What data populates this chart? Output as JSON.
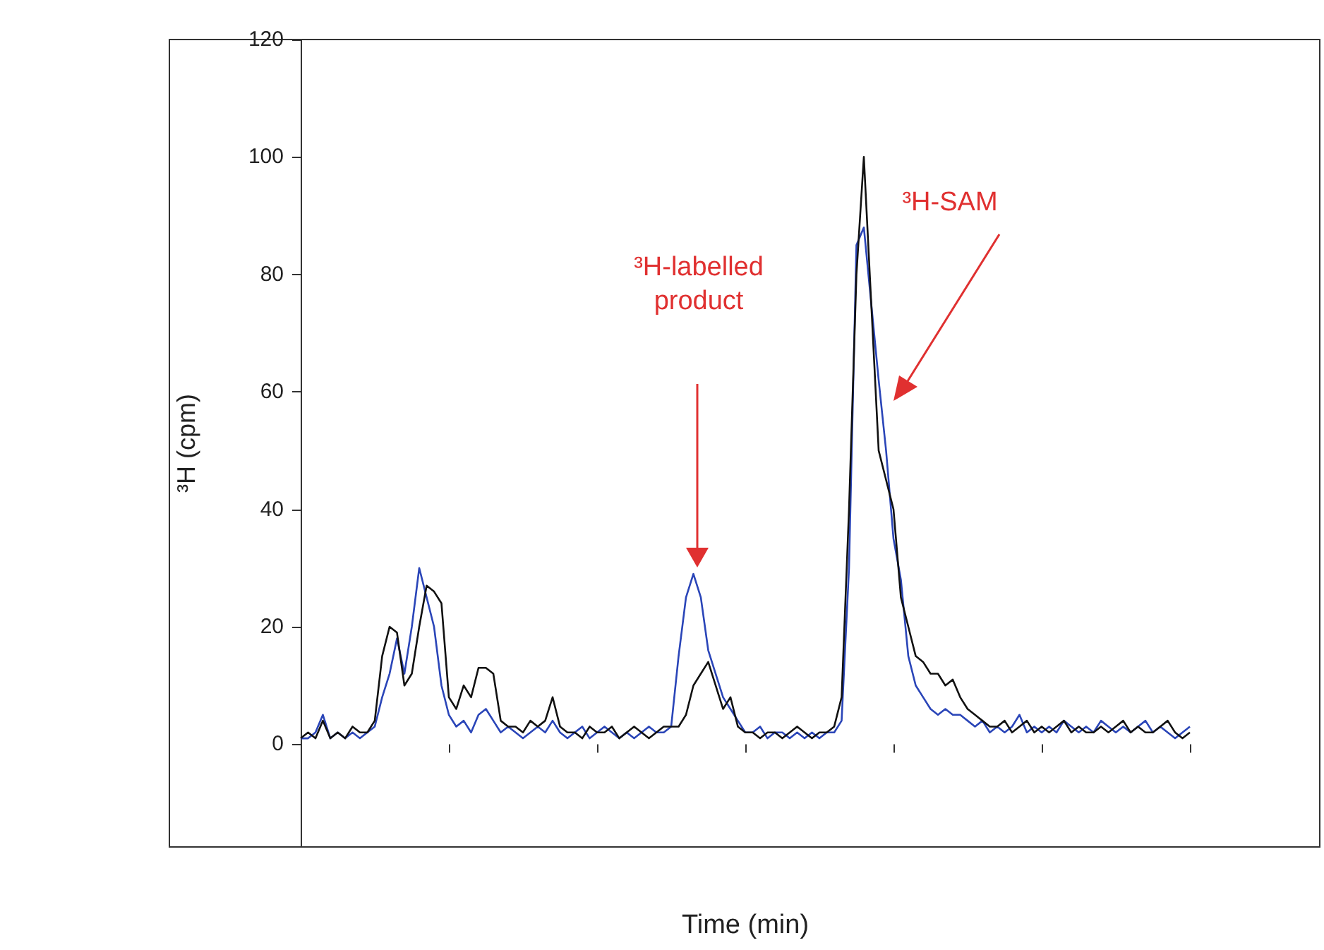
{
  "chart_data": {
    "type": "line",
    "xlabel": "Time (min)",
    "ylabel": "³H (cpm)",
    "categories": [
      null,
      null,
      null,
      null,
      null,
      null,
      null,
      null,
      null,
      null,
      null,
      null,
      null,
      null,
      null,
      null,
      null,
      null,
      null,
      null,
      null,
      null,
      null,
      null,
      null,
      null,
      null,
      null,
      null,
      null,
      null,
      null,
      null,
      null,
      null,
      null,
      null,
      null,
      null,
      null,
      null,
      null,
      null,
      null,
      null,
      null,
      null,
      null,
      null,
      null,
      null,
      null,
      null,
      null,
      null,
      null,
      null,
      null,
      null,
      null,
      null,
      null,
      null,
      null,
      null,
      null,
      null,
      null,
      null,
      null,
      null,
      null,
      null,
      null,
      null,
      null,
      null,
      null,
      null,
      null,
      null,
      null,
      null,
      null,
      null,
      null,
      null,
      null,
      null,
      null,
      null,
      null,
      null,
      null,
      null,
      null,
      null,
      null,
      null,
      null,
      null,
      null,
      null,
      null,
      null,
      null,
      null,
      null,
      null,
      null,
      null,
      null,
      null,
      null,
      null,
      null,
      null,
      null,
      null,
      null,
      null
    ],
    "series": [
      {
        "color": "#111111",
        "values": [
          1,
          2,
          1,
          4,
          1,
          2,
          1,
          3,
          2,
          2,
          4,
          15,
          20,
          19,
          10,
          12,
          20,
          27,
          26,
          24,
          8,
          6,
          10,
          8,
          13,
          13,
          12,
          4,
          3,
          3,
          2,
          4,
          3,
          4,
          8,
          3,
          2,
          2,
          1,
          3,
          2,
          2,
          3,
          1,
          2,
          3,
          2,
          1,
          2,
          3,
          3,
          3,
          5,
          10,
          12,
          14,
          10,
          6,
          8,
          3,
          2,
          2,
          1,
          2,
          2,
          1,
          2,
          3,
          2,
          1,
          2,
          2,
          3,
          8,
          40,
          80,
          100,
          75,
          50,
          45,
          40,
          25,
          20,
          15,
          14,
          12,
          12,
          10,
          11,
          8,
          6,
          5,
          4,
          3,
          3,
          4,
          2,
          3,
          4,
          2,
          3,
          2,
          3,
          4,
          2,
          3,
          2,
          2,
          3,
          2,
          3,
          4,
          2,
          3,
          2,
          2,
          3,
          4,
          2,
          1,
          2
        ]
      },
      {
        "color": "#2a45b8",
        "values": [
          1,
          1,
          2,
          5,
          1,
          2,
          1,
          2,
          1,
          2,
          3,
          8,
          12,
          18,
          12,
          20,
          30,
          25,
          20,
          10,
          5,
          3,
          4,
          2,
          5,
          6,
          4,
          2,
          3,
          2,
          1,
          2,
          3,
          2,
          4,
          2,
          1,
          2,
          3,
          1,
          2,
          3,
          2,
          1,
          2,
          1,
          2,
          3,
          2,
          2,
          3,
          15,
          25,
          29,
          25,
          16,
          12,
          8,
          6,
          4,
          2,
          2,
          3,
          1,
          2,
          2,
          1,
          2,
          1,
          2,
          1,
          2,
          2,
          4,
          30,
          85,
          88,
          75,
          62,
          50,
          35,
          28,
          15,
          10,
          8,
          6,
          5,
          6,
          5,
          5,
          4,
          3,
          4,
          2,
          3,
          2,
          3,
          5,
          2,
          3,
          2,
          3,
          2,
          4,
          3,
          2,
          3,
          2,
          4,
          3,
          2,
          3,
          2,
          3,
          4,
          2,
          3,
          2,
          1,
          2,
          3
        ]
      }
    ],
    "ylim": [
      -17.5,
      120
    ],
    "yticks": [
      0,
      20,
      40,
      60,
      80,
      100,
      120
    ],
    "tick_labels": "y",
    "marker": "none",
    "line_style": "solid",
    "annotations": [
      "³H-labelled product",
      "³H-SAM"
    ]
  }
}
